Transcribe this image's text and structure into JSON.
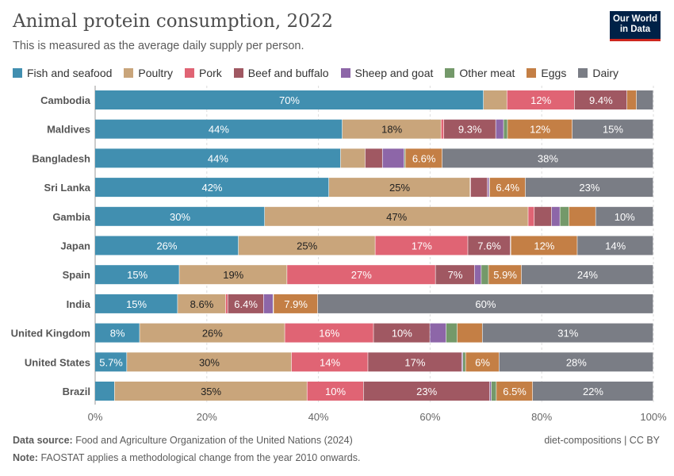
{
  "header": {
    "title": "Animal protein consumption, 2022",
    "subtitle": "This is measured as the average daily supply per person.",
    "logo": "Our World in Data"
  },
  "footer": {
    "source_label": "Data source:",
    "source": "Food and Agriculture Organization of the United Nations (2024)",
    "note_label": "Note:",
    "note": "FAOSTAT applies a methodological change from the year 2010 onwards.",
    "slug": "diet-compositions | CC BY"
  },
  "chart_data": {
    "type": "bar",
    "orientation": "horizontal",
    "stacked": "100%",
    "grid": true,
    "legend_position": "top",
    "xlim": [
      0,
      100
    ],
    "x_ticks": [
      "0%",
      "20%",
      "40%",
      "60%",
      "80%",
      "100%"
    ],
    "categories": [
      "Cambodia",
      "Maldives",
      "Bangladesh",
      "Sri Lanka",
      "Gambia",
      "Japan",
      "Spain",
      "India",
      "United Kingdom",
      "United States",
      "Brazil"
    ],
    "series": [
      {
        "name": "Fish and seafood",
        "color": "#418fb0",
        "values": [
          69.6,
          44.3,
          44.0,
          41.9,
          30.4,
          25.7,
          15.1,
          14.8,
          8.0,
          5.7,
          3.5
        ]
      },
      {
        "name": "Poultry",
        "color": "#c9a57b",
        "values": [
          4.2,
          17.7,
          4.4,
          25.3,
          47.2,
          24.5,
          19.3,
          8.6,
          26.0,
          29.5,
          34.5
        ]
      },
      {
        "name": "Pork",
        "color": "#e06474",
        "values": [
          12.1,
          0.5,
          0.0,
          0.1,
          1.1,
          16.6,
          26.6,
          0.4,
          15.9,
          13.7,
          10.1
        ]
      },
      {
        "name": "Beef and buffalo",
        "color": "#a05862",
        "values": [
          9.4,
          9.3,
          3.1,
          3.0,
          3.1,
          7.6,
          7.0,
          6.4,
          10.1,
          16.8,
          22.6
        ]
      },
      {
        "name": "Sheep and goat",
        "color": "#8d66a8",
        "values": [
          0.0,
          1.4,
          3.9,
          0.3,
          1.5,
          0.1,
          1.2,
          1.7,
          2.9,
          0.2,
          0.3
        ]
      },
      {
        "name": "Other meat",
        "color": "#74996a",
        "values": [
          0.0,
          0.7,
          0.2,
          0.1,
          1.6,
          0.0,
          1.3,
          0.1,
          2.0,
          0.5,
          0.9
        ]
      },
      {
        "name": "Eggs",
        "color": "#c47f45",
        "values": [
          1.7,
          11.6,
          6.6,
          6.4,
          4.8,
          11.9,
          5.9,
          7.9,
          4.5,
          6.0,
          6.5
        ]
      },
      {
        "name": "Dairy",
        "color": "#7a7d85",
        "values": [
          3.0,
          14.5,
          37.8,
          22.9,
          10.3,
          13.6,
          23.6,
          60.1,
          30.6,
          27.6,
          21.6
        ]
      }
    ]
  }
}
